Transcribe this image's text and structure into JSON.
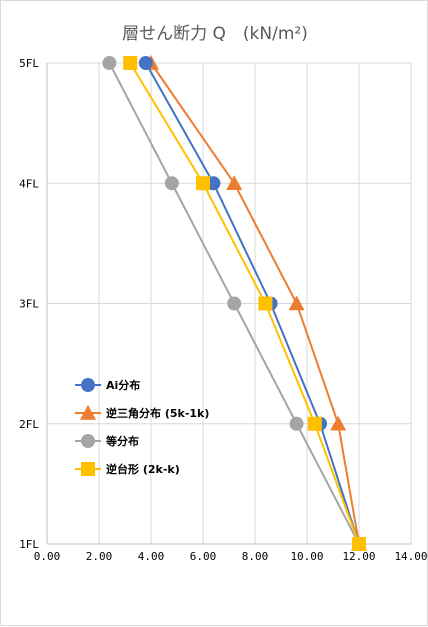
{
  "chart_data": {
    "type": "line",
    "title": "層せん断力 Q　(kN/m²)",
    "xlabel": "",
    "ylabel": "",
    "xlim": [
      0,
      14
    ],
    "x_ticks": [
      "0.00",
      "2.00",
      "4.00",
      "6.00",
      "8.00",
      "10.00",
      "12.00",
      "14.00"
    ],
    "y_categories": [
      "1FL",
      "2FL",
      "3FL",
      "4FL",
      "5FL"
    ],
    "grid": true,
    "legend_position": "left-lower",
    "series": [
      {
        "name": "Ai分布",
        "color": "#4472C4",
        "marker": "circle",
        "points": [
          [
            12.0,
            "1FL"
          ],
          [
            10.5,
            "2FL"
          ],
          [
            8.6,
            "3FL"
          ],
          [
            6.4,
            "4FL"
          ],
          [
            3.8,
            "5FL"
          ]
        ]
      },
      {
        "name": "逆三角分布 (5k-1k)",
        "color": "#ED7D31",
        "marker": "triangle",
        "points": [
          [
            12.0,
            "1FL"
          ],
          [
            11.2,
            "2FL"
          ],
          [
            9.6,
            "3FL"
          ],
          [
            7.2,
            "4FL"
          ],
          [
            4.0,
            "5FL"
          ]
        ]
      },
      {
        "name": "等分布",
        "color": "#A5A5A5",
        "marker": "circle",
        "points": [
          [
            12.0,
            "1FL"
          ],
          [
            9.6,
            "2FL"
          ],
          [
            7.2,
            "3FL"
          ],
          [
            4.8,
            "4FL"
          ],
          [
            2.4,
            "5FL"
          ]
        ]
      },
      {
        "name": "逆台形 (2k-k)",
        "color": "#FFC000",
        "marker": "square",
        "points": [
          [
            12.0,
            "1FL"
          ],
          [
            10.3,
            "2FL"
          ],
          [
            8.4,
            "3FL"
          ],
          [
            6.0,
            "4FL"
          ],
          [
            3.2,
            "5FL"
          ]
        ]
      }
    ]
  }
}
